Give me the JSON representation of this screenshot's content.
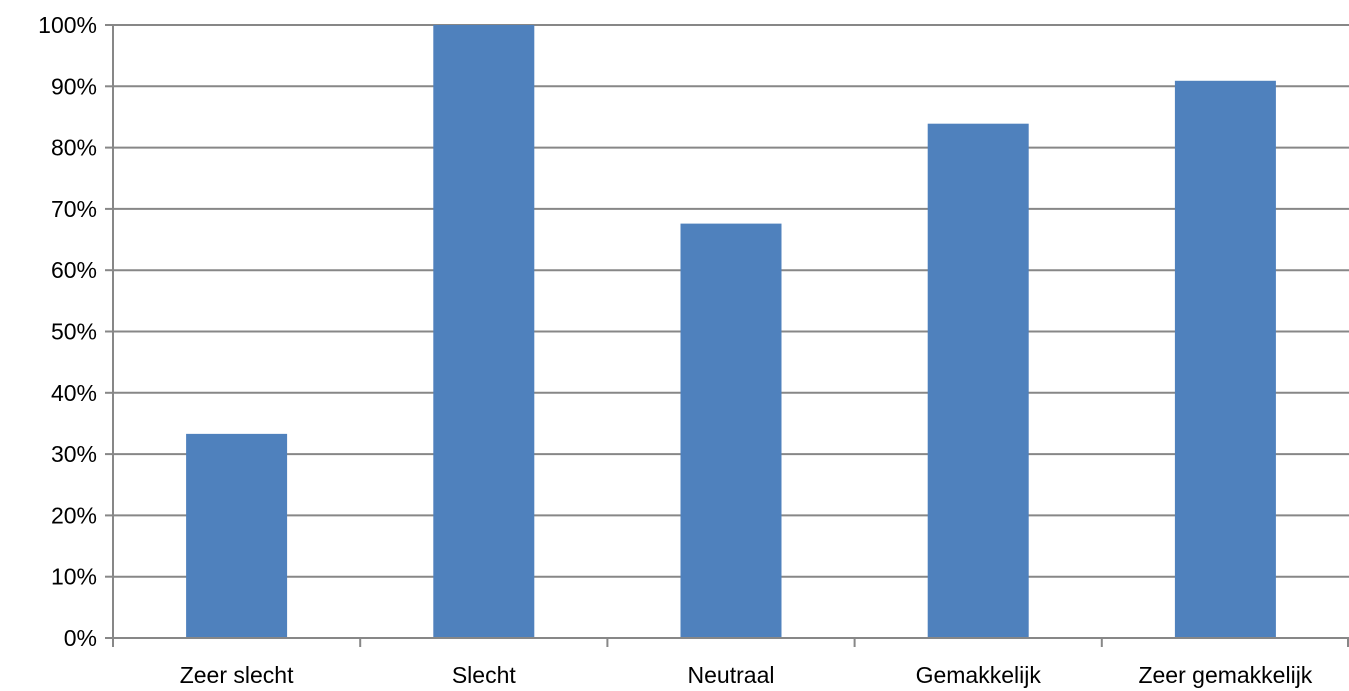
{
  "chart_data": {
    "type": "bar",
    "categories": [
      "Zeer slecht",
      "Slecht",
      "Neutraal",
      "Gemakkelijk",
      "Zeer gemakkelijk"
    ],
    "values": [
      33.3,
      100,
      67.6,
      83.9,
      90.9
    ],
    "y_ticks": [
      "0%",
      "10%",
      "20%",
      "30%",
      "40%",
      "50%",
      "60%",
      "70%",
      "80%",
      "90%",
      "100%"
    ],
    "ylim": [
      0,
      100
    ],
    "grid": true,
    "legend": "none",
    "colors": {
      "bar": "#4f81bd",
      "grid": "#878787",
      "axis": "#878787"
    }
  }
}
